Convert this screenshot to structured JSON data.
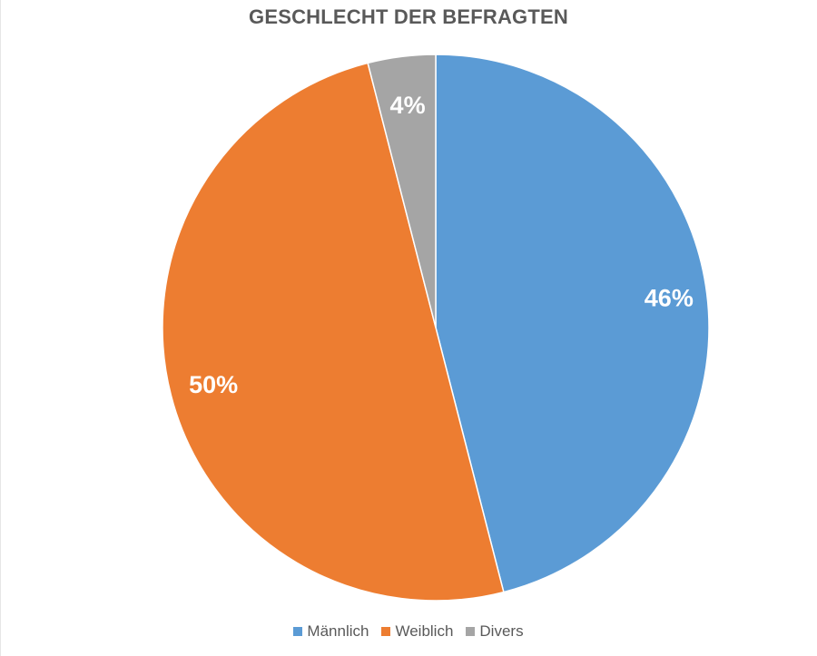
{
  "chart_data": {
    "type": "pie",
    "title": "GESCHLECHT DER BEFRAGTEN",
    "categories": [
      "Männlich",
      "Weiblich",
      "Divers"
    ],
    "values": [
      46,
      50,
      4
    ],
    "data_labels": [
      "46%",
      "50%",
      "4%"
    ],
    "colors": [
      "#5B9BD5",
      "#ED7D31",
      "#A5A5A5"
    ],
    "start_angle": "12 o'clock",
    "direction": "clockwise",
    "legend": "bottom"
  }
}
